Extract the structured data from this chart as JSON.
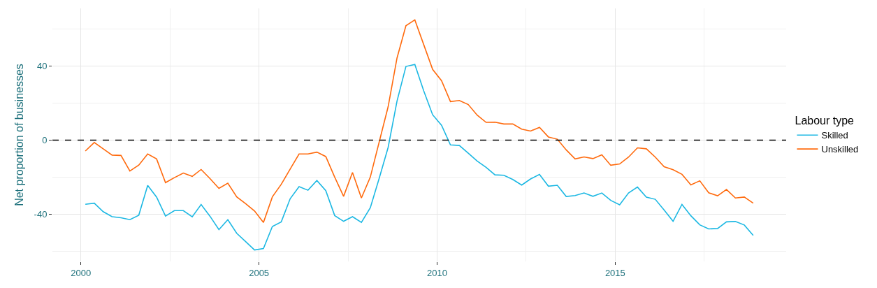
{
  "chart_data": {
    "type": "line",
    "ylabel": "Net proportion of businesses",
    "legend_title": "Labour type",
    "x": [
      2000.125,
      2000.375,
      2000.625,
      2000.875,
      2001.125,
      2001.375,
      2001.625,
      2001.875,
      2002.125,
      2002.375,
      2002.625,
      2002.875,
      2003.125,
      2003.375,
      2003.625,
      2003.875,
      2004.125,
      2004.375,
      2004.625,
      2004.875,
      2005.125,
      2005.375,
      2005.625,
      2005.875,
      2006.125,
      2006.375,
      2006.625,
      2006.875,
      2007.125,
      2007.375,
      2007.625,
      2007.875,
      2008.125,
      2008.375,
      2008.625,
      2008.875,
      2009.125,
      2009.375,
      2009.625,
      2009.875,
      2010.125,
      2010.375,
      2010.625,
      2010.875,
      2011.125,
      2011.375,
      2011.625,
      2011.875,
      2012.125,
      2012.375,
      2012.625,
      2012.875,
      2013.125,
      2013.375,
      2013.625,
      2013.875,
      2014.125,
      2014.375,
      2014.625,
      2014.875,
      2015.125,
      2015.375,
      2015.625,
      2015.875,
      2016.125,
      2016.375,
      2016.625,
      2016.875,
      2017.125,
      2017.375,
      2017.625,
      2017.875,
      2018.125,
      2018.375,
      2018.625,
      2018.875
    ],
    "series": [
      {
        "name": "Skilled",
        "color": "#1cb8e3",
        "values": [
          -34.7,
          -34.1,
          -38.7,
          -41.4,
          -42.0,
          -43.0,
          -40.6,
          -24.5,
          -30.8,
          -41.1,
          -38.1,
          -38.1,
          -41.5,
          -34.8,
          -41.2,
          -48.4,
          -43.0,
          -50.4,
          -54.9,
          -59.4,
          -58.6,
          -46.7,
          -44.2,
          -31.7,
          -25.2,
          -27.1,
          -21.8,
          -27.3,
          -40.8,
          -43.9,
          -41.4,
          -44.5,
          -36.6,
          -20.6,
          -4.0,
          21.1,
          39.8,
          40.9,
          26.6,
          13.7,
          8.0,
          -2.6,
          -2.9,
          -7.1,
          -11.3,
          -14.7,
          -18.8,
          -19.0,
          -21.3,
          -24.3,
          -21.0,
          -18.6,
          -24.9,
          -24.4,
          -30.5,
          -30.0,
          -28.6,
          -30.4,
          -28.6,
          -32.6,
          -35.0,
          -28.6,
          -25.4,
          -30.8,
          -32.0,
          -37.8,
          -43.9,
          -34.8,
          -40.9,
          -45.8,
          -48.0,
          -47.8,
          -44.2,
          -44.0,
          -45.9,
          -51.5
        ]
      },
      {
        "name": "Unskilled",
        "color": "#ff6a0d",
        "values": [
          -5.9,
          -1.3,
          -4.7,
          -8.1,
          -8.3,
          -16.7,
          -13.5,
          -7.5,
          -10.2,
          -23.0,
          -20.3,
          -17.8,
          -19.6,
          -15.9,
          -20.8,
          -26.1,
          -23.3,
          -30.7,
          -34.4,
          -38.3,
          -44.5,
          -30.7,
          -23.9,
          -15.7,
          -7.5,
          -7.5,
          -6.5,
          -8.9,
          -20.0,
          -30.4,
          -17.5,
          -31.3,
          -20.0,
          -1.0,
          18.0,
          44.4,
          61.8,
          65.0,
          51.6,
          38.2,
          32.1,
          20.8,
          21.4,
          19.2,
          13.5,
          9.6,
          9.7,
          8.7,
          8.7,
          5.9,
          4.9,
          6.9,
          1.7,
          0.5,
          -5.3,
          -10.2,
          -9.1,
          -10.0,
          -8.0,
          -13.6,
          -12.9,
          -9.2,
          -4.2,
          -4.7,
          -9.2,
          -14.4,
          -16.0,
          -18.5,
          -24.2,
          -22.0,
          -28.5,
          -30.1,
          -26.7,
          -31.3,
          -30.8,
          -34.1
        ]
      }
    ],
    "xlim": [
      1999.2,
      2019.8
    ],
    "xticks": [
      2000,
      {
        "value": 2002.5,
        "label": null
      },
      2005,
      {
        "value": 2007.5,
        "label": null
      },
      2010,
      {
        "value": 2012.5,
        "label": null
      },
      2015,
      {
        "value": 2017.5,
        "label": null
      }
    ],
    "ylim": [
      -65.6,
      71.2
    ],
    "yticks": [
      {
        "value": -60,
        "label": null
      },
      -40,
      {
        "value": -20,
        "label": null
      },
      0,
      {
        "value": 20,
        "label": null
      },
      40,
      {
        "value": 60,
        "label": null
      }
    ],
    "ref_lines": [
      {
        "axis": "y",
        "value": 0,
        "color": "#000000",
        "line_style": "dashed"
      }
    ],
    "grid": true,
    "legend": "right",
    "marker": "none",
    "line_style": "solid"
  }
}
